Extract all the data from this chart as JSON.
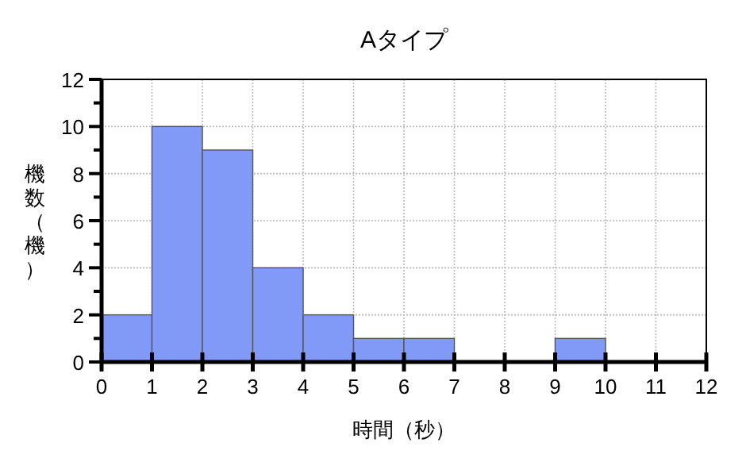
{
  "chart_data": {
    "type": "histogram",
    "title": "Aタイプ",
    "xlabel": "時間（秒）",
    "ylabel": "機数（機）",
    "bins": [
      0,
      1,
      2,
      3,
      4,
      5,
      6,
      7,
      8,
      9,
      10
    ],
    "values": [
      2,
      10,
      9,
      4,
      2,
      1,
      1,
      0,
      0,
      1
    ],
    "color": "#8199f7",
    "xlim": [
      0,
      12
    ],
    "xticks": [
      0,
      1,
      2,
      3,
      4,
      5,
      6,
      7,
      8,
      9,
      10,
      11,
      12
    ],
    "ylim": [
      0,
      12
    ],
    "yticks": [
      0,
      {
        "value": 1,
        "label": null
      },
      2,
      {
        "value": 3,
        "label": null
      },
      4,
      {
        "value": 5,
        "label": null
      },
      6,
      {
        "value": 7,
        "label": null
      },
      8,
      {
        "value": 9,
        "label": null
      },
      10,
      {
        "value": 11,
        "label": null
      },
      12
    ],
    "grid": true
  }
}
